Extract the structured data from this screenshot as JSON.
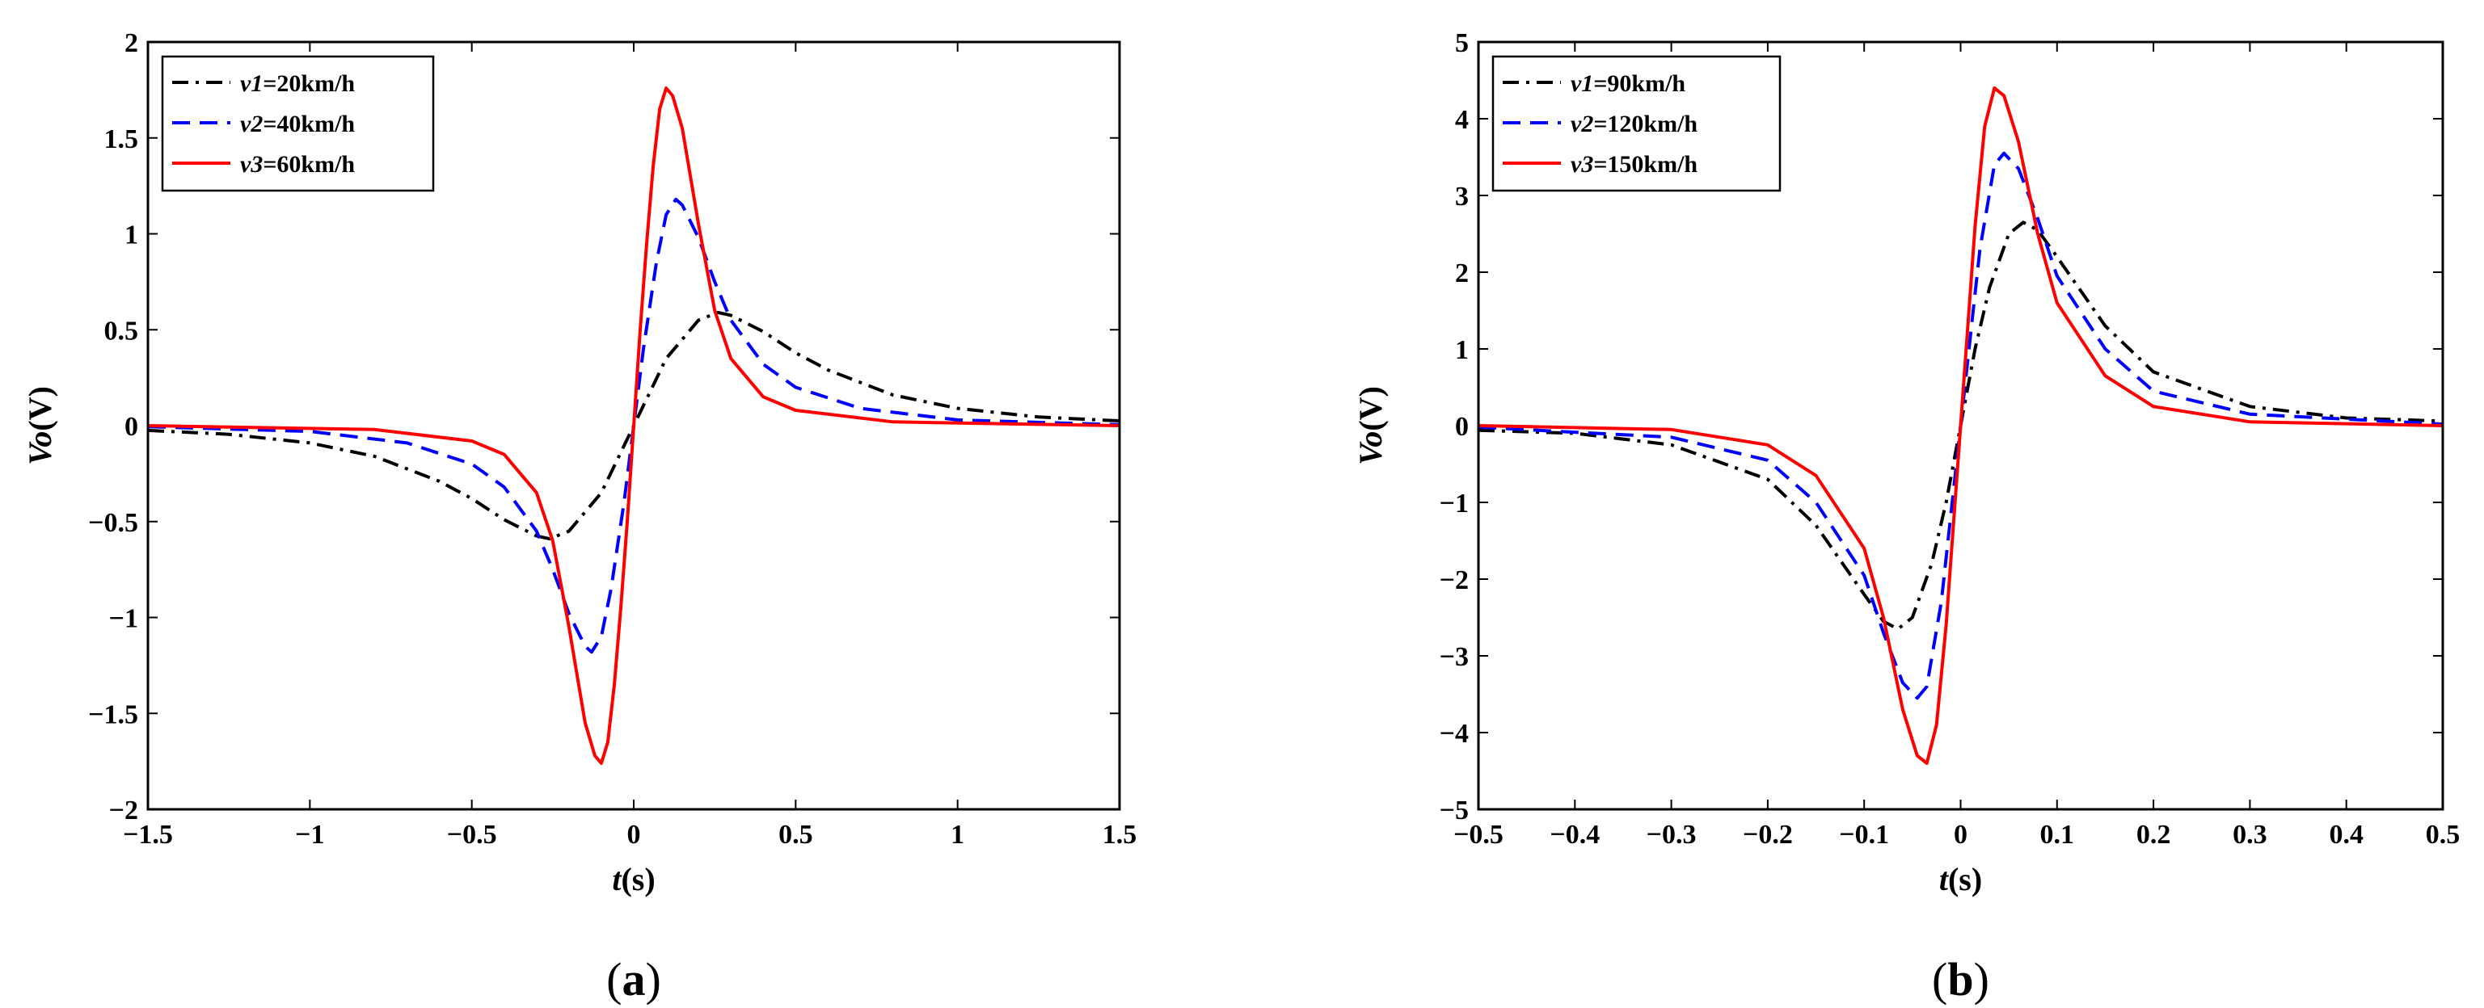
{
  "chart_data": [
    {
      "type": "line",
      "panel_label": "(a)",
      "xlabel": "t(s)",
      "ylabel": "Vo(V)",
      "xlim": [
        -1.5,
        1.5
      ],
      "ylim": [
        -2,
        2
      ],
      "xticks": [
        -1.5,
        -1,
        -0.5,
        0,
        0.5,
        1,
        1.5
      ],
      "xtick_labels": [
        "−1.5",
        "−1",
        "−0.5",
        "0",
        "0.5",
        "1",
        "1.5"
      ],
      "yticks": [
        -2,
        -1.5,
        -1,
        -0.5,
        0,
        0.5,
        1,
        1.5,
        2
      ],
      "ytick_labels": [
        "−2",
        "−1.5",
        "−1",
        "−0.5",
        "0",
        "0.5",
        "1",
        "1.5",
        "2"
      ],
      "legend_position": "top-left",
      "series": [
        {
          "name": "v1=20km/h",
          "var": "v1",
          "speed": "=20km/h",
          "color": "#000000",
          "dash": "dashdot",
          "x": [
            -1.5,
            -1.25,
            -1.0,
            -0.8,
            -0.6,
            -0.5,
            -0.4,
            -0.3,
            -0.26,
            -0.2,
            -0.1,
            0.0,
            0.1,
            0.2,
            0.26,
            0.3,
            0.4,
            0.5,
            0.6,
            0.8,
            1.0,
            1.25,
            1.5
          ],
          "y": [
            -0.025,
            -0.045,
            -0.09,
            -0.16,
            -0.29,
            -0.38,
            -0.49,
            -0.575,
            -0.59,
            -0.55,
            -0.35,
            0.0,
            0.35,
            0.55,
            0.59,
            0.575,
            0.49,
            0.38,
            0.29,
            0.16,
            0.09,
            0.045,
            0.025
          ]
        },
        {
          "name": "v2=40km/h",
          "var": "v2",
          "speed": "=40km/h",
          "color": "#0000ff",
          "dash": "dashed",
          "x": [
            -1.5,
            -1.0,
            -0.7,
            -0.5,
            -0.4,
            -0.3,
            -0.25,
            -0.2,
            -0.15,
            -0.13,
            -0.1,
            -0.07,
            -0.03,
            0.0,
            0.03,
            0.07,
            0.1,
            0.13,
            0.15,
            0.2,
            0.25,
            0.3,
            0.4,
            0.5,
            0.7,
            1.0,
            1.5
          ],
          "y": [
            -0.005,
            -0.03,
            -0.09,
            -0.2,
            -0.32,
            -0.55,
            -0.75,
            -0.98,
            -1.15,
            -1.18,
            -1.1,
            -0.85,
            -0.4,
            0.0,
            0.4,
            0.85,
            1.1,
            1.18,
            1.15,
            0.98,
            0.75,
            0.55,
            0.32,
            0.2,
            0.09,
            0.03,
            0.005
          ]
        },
        {
          "name": "v3=60km/h",
          "var": "v3",
          "speed": "=60km/h",
          "color": "#ff0000",
          "dash": "solid",
          "x": [
            -1.5,
            -0.8,
            -0.5,
            -0.4,
            -0.3,
            -0.25,
            -0.2,
            -0.15,
            -0.12,
            -0.1,
            -0.08,
            -0.06,
            -0.04,
            -0.02,
            0.0,
            0.02,
            0.04,
            0.06,
            0.08,
            0.1,
            0.12,
            0.15,
            0.2,
            0.25,
            0.3,
            0.4,
            0.5,
            0.8,
            1.5
          ],
          "y": [
            0.0,
            -0.02,
            -0.08,
            -0.15,
            -0.35,
            -0.6,
            -1.05,
            -1.55,
            -1.72,
            -1.76,
            -1.65,
            -1.35,
            -0.95,
            -0.5,
            0.0,
            0.5,
            0.95,
            1.35,
            1.65,
            1.76,
            1.72,
            1.55,
            1.05,
            0.6,
            0.35,
            0.15,
            0.08,
            0.02,
            0.0
          ]
        }
      ]
    },
    {
      "type": "line",
      "panel_label": "(b)",
      "xlabel": "t(s)",
      "ylabel": "Vo(V)",
      "xlim": [
        -0.5,
        0.5
      ],
      "ylim": [
        -5,
        5
      ],
      "xticks": [
        -0.5,
        -0.4,
        -0.3,
        -0.2,
        -0.1,
        0,
        0.1,
        0.2,
        0.3,
        0.4,
        0.5
      ],
      "xtick_labels": [
        "−0.5",
        "−0.4",
        "−0.3",
        "−0.2",
        "−0.1",
        "0",
        "0.1",
        "0.2",
        "0.3",
        "0.4",
        "0.5"
      ],
      "yticks": [
        -5,
        -4,
        -3,
        -2,
        -1,
        0,
        1,
        2,
        3,
        4,
        5
      ],
      "ytick_labels": [
        "−5",
        "−4",
        "−3",
        "−2",
        "−1",
        "0",
        "1",
        "2",
        "3",
        "4",
        "5"
      ],
      "legend_position": "top-left",
      "series": [
        {
          "name": "v1=90km/h",
          "var": "v1",
          "speed": "=90km/h",
          "color": "#000000",
          "dash": "dashdot",
          "x": [
            -0.5,
            -0.4,
            -0.3,
            -0.2,
            -0.15,
            -0.1,
            -0.08,
            -0.065,
            -0.05,
            -0.03,
            -0.015,
            0.0,
            0.015,
            0.03,
            0.05,
            0.065,
            0.08,
            0.1,
            0.15,
            0.2,
            0.3,
            0.4,
            0.5
          ],
          "y": [
            -0.06,
            -0.1,
            -0.25,
            -0.7,
            -1.3,
            -2.2,
            -2.55,
            -2.65,
            -2.5,
            -1.8,
            -1.0,
            0.0,
            1.0,
            1.8,
            2.5,
            2.65,
            2.55,
            2.2,
            1.3,
            0.7,
            0.25,
            0.1,
            0.06
          ]
        },
        {
          "name": "v2=120km/h",
          "var": "v2",
          "speed": "=120km/h",
          "color": "#0000ff",
          "dash": "dashed",
          "x": [
            -0.5,
            -0.3,
            -0.2,
            -0.15,
            -0.1,
            -0.08,
            -0.06,
            -0.045,
            -0.035,
            -0.02,
            0.0,
            0.02,
            0.035,
            0.045,
            0.06,
            0.08,
            0.1,
            0.15,
            0.2,
            0.3,
            0.5
          ],
          "y": [
            -0.02,
            -0.15,
            -0.45,
            -1.0,
            -1.95,
            -2.7,
            -3.35,
            -3.55,
            -3.4,
            -2.3,
            0.0,
            2.3,
            3.4,
            3.55,
            3.35,
            2.7,
            1.95,
            1.0,
            0.45,
            0.15,
            0.02
          ]
        },
        {
          "name": "v3=150km/h",
          "var": "v3",
          "speed": "=150km/h",
          "color": "#ff0000",
          "dash": "solid",
          "x": [
            -0.5,
            -0.3,
            -0.2,
            -0.15,
            -0.1,
            -0.08,
            -0.06,
            -0.045,
            -0.035,
            -0.025,
            -0.015,
            0.0,
            0.015,
            0.025,
            0.035,
            0.045,
            0.06,
            0.08,
            0.1,
            0.15,
            0.2,
            0.3,
            0.5
          ],
          "y": [
            0.0,
            -0.05,
            -0.25,
            -0.65,
            -1.6,
            -2.5,
            -3.7,
            -4.3,
            -4.4,
            -3.9,
            -2.6,
            0.0,
            2.6,
            3.9,
            4.4,
            4.3,
            3.7,
            2.5,
            1.6,
            0.65,
            0.25,
            0.05,
            0.0
          ]
        }
      ]
    }
  ]
}
